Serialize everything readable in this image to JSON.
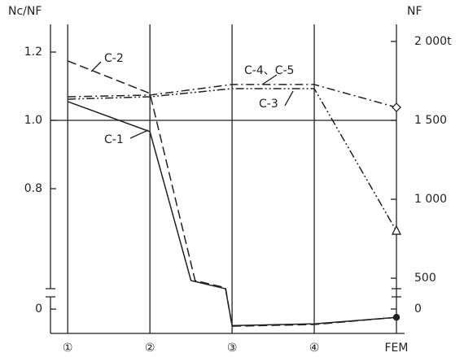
{
  "chart_data": {
    "type": "line",
    "y_label": "Nc/NF",
    "y2_label": "NF",
    "xlim": [
      0.79,
      5
    ],
    "xticks": [
      {
        "value": 1,
        "label": "①"
      },
      {
        "value": 2,
        "label": "②"
      },
      {
        "value": 3,
        "label": "③"
      },
      {
        "value": 4,
        "label": "④"
      },
      {
        "value": 5,
        "label": "FEM"
      }
    ],
    "ylim": [
      -0.071,
      1.281
    ],
    "y_break": [
      0.043,
      0.5
    ],
    "yticks": [
      0,
      0.8,
      {
        "value": 1,
        "label": "1.0"
      },
      1.2
    ],
    "y2lim": [
      -155,
      2108
    ],
    "y2_break": [
      93,
      418
    ],
    "y2ticks": [
      0,
      500,
      {
        "value": 1000,
        "label": "1 000"
      },
      {
        "value": 1500,
        "label": "1 500"
      },
      {
        "value": 2000,
        "label": "2 000t"
      }
    ],
    "reference_line": 1,
    "series": [
      {
        "name": "C-1",
        "color": "#222",
        "linestyle": "solid",
        "marker": "circle",
        "x": [
          1,
          2,
          2.5,
          2.92,
          3,
          4,
          5
        ],
        "values": [
          1.055,
          0.967,
          0.531,
          0.507,
          -0.048,
          -0.043,
          -0.024
        ]
      },
      {
        "name": "C-2",
        "color": "#222",
        "linestyle": "dashed",
        "marker": "circle",
        "x": [
          1,
          2,
          2.55,
          2.92,
          3,
          4,
          5
        ],
        "values": [
          1.174,
          1.079,
          0.531,
          0.51,
          -0.05,
          -0.045,
          -0.024
        ]
      },
      {
        "name": "C-3",
        "color": "#222",
        "linestyle": "dashdotdot",
        "marker": "triangle",
        "x": [
          1,
          2,
          3,
          4,
          5
        ],
        "values": [
          1.062,
          1.069,
          1.093,
          1.093,
          0.676
        ]
      },
      {
        "name": "C-4、C-5",
        "color": "#222",
        "linestyle": "dashdot",
        "marker": "diamond",
        "x": [
          1,
          2,
          3,
          4,
          5
        ],
        "values": [
          1.069,
          1.074,
          1.105,
          1.105,
          1.038
        ]
      }
    ]
  }
}
